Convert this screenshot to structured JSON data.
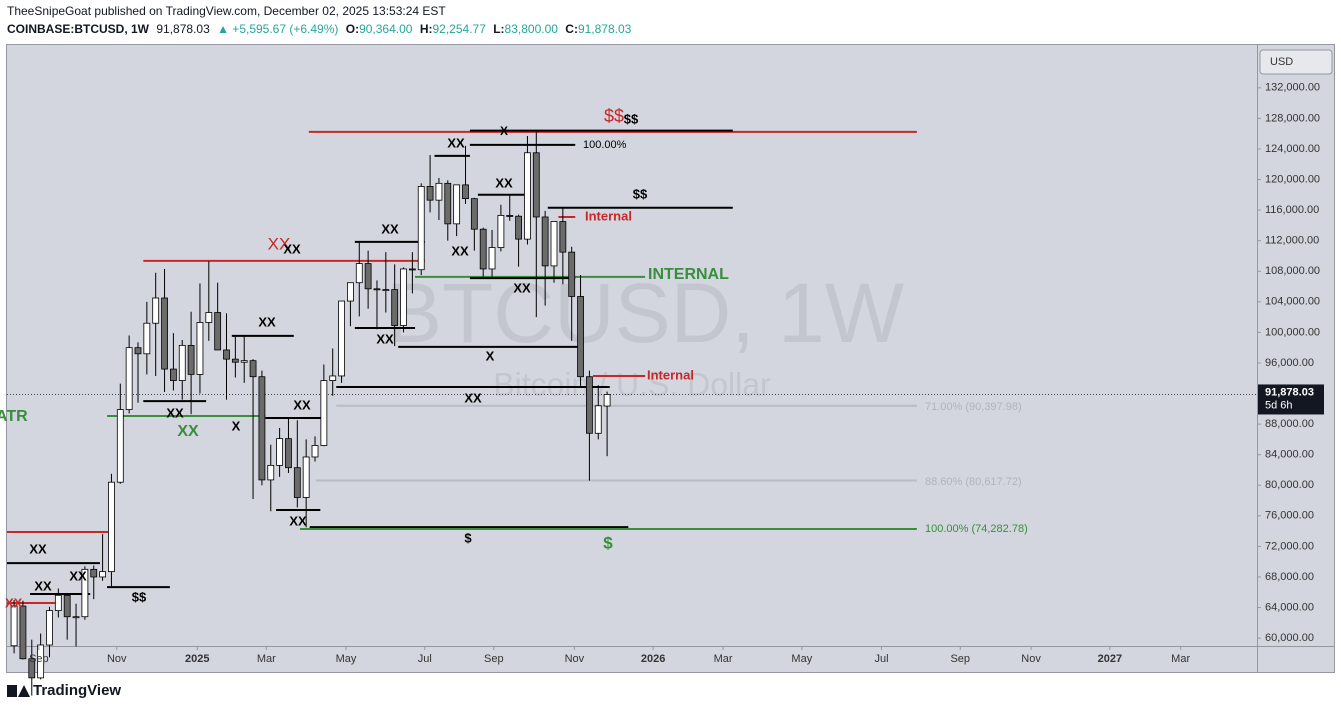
{
  "header": {
    "line1": "TheeSnipeGoat published on TradingView.com, December 02, 2025 13:53:24 EST",
    "symbol": "COINBASE:BTCUSD, 1W",
    "price": "91,878.03",
    "change": "▲ +5,595.67 (+6.49%)",
    "ohlc": [
      {
        "label": "O:",
        "value": "90,364.00"
      },
      {
        "label": "H:",
        "value": "92,254.77"
      },
      {
        "label": "L:",
        "value": "83,800.00"
      },
      {
        "label": "C:",
        "value": "91,878.03"
      }
    ]
  },
  "footer": {
    "brand": "TradingView"
  },
  "chart_data": {
    "type": "candlestick",
    "watermark": "BTCUSD, 1W",
    "watermark_sub": "Bitcoin / U.S. Dollar",
    "currency": "USD",
    "price_label": "91,878.03",
    "countdown": "5d 6h",
    "up_color": "#ffffff",
    "down_color": "#6b6b6b",
    "border_color": "#000000",
    "open": [
      59000,
      64200,
      57300,
      54800,
      59100,
      63600,
      65600,
      62800,
      62800,
      69000,
      68000,
      68700,
      80400,
      89900,
      98000,
      97200,
      101200,
      104500,
      95200,
      93700,
      98300,
      94500,
      101300,
      102600,
      97700,
      96500,
      96100,
      96300,
      94200,
      80700,
      82600,
      86100,
      82300,
      78400,
      83700,
      85200,
      93700,
      94300,
      104100,
      106500,
      109000,
      105700,
      105600,
      105600,
      100900,
      108300,
      108200,
      119100,
      117300,
      119500,
      114200,
      119300,
      117500,
      113500,
      108300,
      111100,
      115300,
      115200,
      112200,
      123500,
      115100,
      108700,
      114500,
      110500,
      104700,
      94200,
      86800,
      90364
    ],
    "high": [
      65000,
      64900,
      59800,
      60600,
      64100,
      66500,
      65600,
      64500,
      69400,
      69500,
      73600,
      81500,
      93300,
      99600,
      98700,
      104000,
      107800,
      108300,
      99900,
      99000,
      102700,
      106400,
      109300,
      106500,
      102500,
      99500,
      99500,
      96500,
      95000,
      85300,
      87500,
      88800,
      88500,
      86000,
      86400,
      95800,
      97900,
      104100,
      105800,
      111900,
      110700,
      106800,
      110500,
      108900,
      108500,
      110500,
      119500,
      123200,
      120200,
      119900,
      119300,
      124400,
      117600,
      113700,
      113400,
      116700,
      117900,
      115400,
      125700,
      126200,
      115900,
      113900,
      116400,
      111200,
      107500,
      95000,
      93100,
      92254.77
    ],
    "low": [
      58000,
      57200,
      52500,
      54600,
      57500,
      62700,
      59800,
      58900,
      62400,
      65100,
      67500,
      66800,
      80200,
      89400,
      90800,
      94500,
      94300,
      92200,
      92400,
      91200,
      89300,
      92000,
      98900,
      97800,
      91200,
      94100,
      93400,
      78200,
      80000,
      76600,
      81100,
      81600,
      77100,
      74500,
      83100,
      85100,
      91700,
      93400,
      100800,
      102100,
      103100,
      100400,
      102600,
      98200,
      100000,
      105100,
      107500,
      115700,
      114700,
      112000,
      112600,
      116800,
      110700,
      107300,
      107300,
      110600,
      114600,
      108600,
      111500,
      102000,
      103500,
      106500,
      106300,
      98900,
      93000,
      80600,
      86000,
      83800
    ],
    "close": [
      64200,
      57300,
      54800,
      59100,
      63600,
      65600,
      62800,
      62800,
      69000,
      68000,
      68700,
      80400,
      89900,
      98000,
      97200,
      101200,
      104500,
      95200,
      93700,
      98300,
      94500,
      101300,
      102600,
      97700,
      96500,
      96100,
      96300,
      94200,
      80700,
      82600,
      86100,
      82300,
      78400,
      83700,
      85200,
      93700,
      94300,
      104100,
      106500,
      109000,
      105700,
      105600,
      105600,
      100900,
      108300,
      108200,
      119100,
      117300,
      119500,
      114200,
      119300,
      117500,
      113500,
      108300,
      111100,
      115300,
      115200,
      112200,
      123500,
      115100,
      108700,
      114500,
      110500,
      104700,
      94200,
      86800,
      90400,
      91878.03
    ],
    "xlim": [
      -0.8,
      140.2
    ],
    "xticks": [
      {
        "value": 2.8,
        "label": "Sep"
      },
      {
        "value": 11.6,
        "label": "Nov"
      },
      {
        "value": 20.7,
        "label": "2025"
      },
      {
        "value": 28.5,
        "label": "Mar"
      },
      {
        "value": 37.5,
        "label": "May"
      },
      {
        "value": 46.4,
        "label": "Jul"
      },
      {
        "value": 54.2,
        "label": "Sep"
      },
      {
        "value": 63.3,
        "label": "Nov"
      },
      {
        "value": 72.2,
        "label": "2026"
      },
      {
        "value": 80.1,
        "label": "Mar"
      },
      {
        "value": 89.0,
        "label": "May"
      },
      {
        "value": 98.0,
        "label": "Jul"
      },
      {
        "value": 106.9,
        "label": "Sep"
      },
      {
        "value": 114.9,
        "label": "Nov"
      },
      {
        "value": 123.8,
        "label": "2027"
      },
      {
        "value": 131.8,
        "label": "Mar"
      }
    ],
    "ylim": [
      59100,
      137600
    ],
    "yticks": [
      {
        "value": 60000,
        "label": "60,000.00"
      },
      {
        "value": 64000,
        "label": "64,000.00"
      },
      {
        "value": 68000,
        "label": "68,000.00"
      },
      {
        "value": 72000,
        "label": "72,000.00"
      },
      {
        "value": 76000,
        "label": "76,000.00"
      },
      {
        "value": 80000,
        "label": "80,000.00"
      },
      {
        "value": 84000,
        "label": "84,000.00"
      },
      {
        "value": 88000,
        "label": "88,000.00"
      },
      {
        "value": 92000,
        "label": "92,000.00"
      },
      {
        "value": 96000,
        "label": "96,000.00"
      },
      {
        "value": 100000,
        "label": "100,000.00"
      },
      {
        "value": 104000,
        "label": "104,000.00"
      },
      {
        "value": 108000,
        "label": "108,000.00"
      },
      {
        "value": 112000,
        "label": "112,000.00"
      },
      {
        "value": 116000,
        "label": "116,000.00"
      },
      {
        "value": 120000,
        "label": "120,000.00"
      },
      {
        "value": 124000,
        "label": "124,000.00"
      },
      {
        "value": 128000,
        "label": "128,000.00"
      },
      {
        "value": 132000,
        "label": "132,000.00"
      }
    ],
    "grid": false,
    "levels": [
      {
        "price": 126240,
        "x": [
          33.3,
          102.0
        ],
        "color": "#c62828"
      },
      {
        "price": 126400,
        "x": [
          51.5,
          81.2
        ],
        "color": "#000000"
      },
      {
        "price": 124540,
        "x": [
          51.5,
          63.4
        ],
        "color": "#000000"
      },
      {
        "price": 123100,
        "x": [
          47.5,
          51.5
        ],
        "color": "#000000"
      },
      {
        "price": 118000,
        "x": [
          52.4,
          58.1
        ],
        "color": "#000000"
      },
      {
        "price": 116300,
        "x": [
          60.3,
          81.2
        ],
        "color": "#000000"
      },
      {
        "price": 115100,
        "x": [
          61.5,
          63.4
        ],
        "color": "#c62828"
      },
      {
        "price": 111840,
        "x": [
          38.5,
          46.4
        ],
        "color": "#000000"
      },
      {
        "price": 109350,
        "x": [
          14.6,
          46.4
        ],
        "color": "#c62828"
      },
      {
        "price": 107260,
        "x": [
          45.3,
          71.3
        ],
        "color": "#388e3c"
      },
      {
        "price": 107100,
        "x": [
          51.5,
          63.4
        ],
        "color": "#000000"
      },
      {
        "price": 100580,
        "x": [
          38.5,
          45.3
        ],
        "color": "#000000"
      },
      {
        "price": 99540,
        "x": [
          24.6,
          31.6
        ],
        "color": "#000000"
      },
      {
        "price": 98100,
        "x": [
          43.4,
          64.0
        ],
        "color": "#000000"
      },
      {
        "price": 94300,
        "x": [
          65.4,
          71.3
        ],
        "color": "#c62828"
      },
      {
        "price": 92860,
        "x": [
          36.4,
          67.3
        ],
        "color": "#000000"
      },
      {
        "price": 91000,
        "x": [
          14.6,
          21.7
        ],
        "color": "#000000"
      },
      {
        "price": 90397.98,
        "x": [
          36.4,
          102.0
        ],
        "color": "#b8bcc6"
      },
      {
        "price": 89060,
        "x": [
          10.5,
          28.4
        ],
        "color": "#388e3c"
      },
      {
        "price": 88800,
        "x": [
          28.4,
          35.1
        ],
        "color": "#000000"
      },
      {
        "price": 80617.72,
        "x": [
          34.1,
          102.0
        ],
        "color": "#b8bcc6"
      },
      {
        "price": 76760,
        "x": [
          29.6,
          34.6
        ],
        "color": "#000000"
      },
      {
        "price": 74530,
        "x": [
          33.4,
          69.4
        ],
        "color": "#000000"
      },
      {
        "price": 74282.78,
        "x": [
          32.3,
          102.0
        ],
        "color": "#388e3c"
      },
      {
        "price": 73880,
        "x": [
          -0.8,
          10.8
        ],
        "color": "#c62828"
      },
      {
        "price": 69820,
        "x": [
          -0.8,
          9.7
        ],
        "color": "#000000"
      },
      {
        "price": 66680,
        "x": [
          10.5,
          17.6
        ],
        "color": "#000000"
      },
      {
        "price": 65770,
        "x": [
          1.8,
          8.6
        ],
        "color": "#000000"
      },
      {
        "price": 64590,
        "x": [
          -0.8,
          5.2
        ],
        "color": "#c62828"
      }
    ],
    "annotations": [
      {
        "text": "$$",
        "color": "#c62828"
      },
      {
        "text": "$$",
        "color": "#000000"
      },
      {
        "text": "X",
        "color": "#000000"
      },
      {
        "text": "XX",
        "color": "#000000"
      },
      {
        "text": "100.00%",
        "color": "#000000"
      },
      {
        "text": "XX",
        "color": "#000000"
      },
      {
        "text": "$$",
        "color": "#000000"
      },
      {
        "text": "Internal",
        "color": "#c62828"
      },
      {
        "text": "XX",
        "color": "#000000"
      },
      {
        "text": "XX",
        "color": "#c62828"
      },
      {
        "text": "XX",
        "color": "#000000"
      },
      {
        "text": "XX",
        "color": "#000000"
      },
      {
        "text": "INTERNAL",
        "color": "#388e3c"
      },
      {
        "text": "XX",
        "color": "#000000"
      },
      {
        "text": "XX",
        "color": "#000000"
      },
      {
        "text": "XX",
        "color": "#000000"
      },
      {
        "text": "X",
        "color": "#000000"
      },
      {
        "text": "Internal",
        "color": "#c62828"
      },
      {
        "text": "XX",
        "color": "#000000"
      },
      {
        "text": "XX",
        "color": "#000000"
      },
      {
        "text": "XX",
        "color": "#000000"
      },
      {
        "text": "ATR",
        "color": "#388e3c"
      },
      {
        "text": "XX",
        "color": "#388e3c"
      },
      {
        "text": "X",
        "color": "#000000"
      },
      {
        "text": "XX",
        "color": "#000000"
      },
      {
        "text": "$",
        "color": "#000000"
      },
      {
        "text": "$",
        "color": "#388e3c"
      },
      {
        "text": "XX",
        "color": "#000000"
      },
      {
        "text": "XX",
        "color": "#000000"
      },
      {
        "text": "XX",
        "color": "#000000"
      },
      {
        "text": "$$",
        "color": "#000000"
      },
      {
        "text": "XX",
        "color": "#c62828"
      },
      {
        "text": "71.00% (90,397.98)",
        "color": "#b0b4be"
      },
      {
        "text": "88.60% (80,617.72)",
        "color": "#b0b4be"
      },
      {
        "text": "100.00% (74,282.78)",
        "color": "#388e3c"
      }
    ]
  }
}
